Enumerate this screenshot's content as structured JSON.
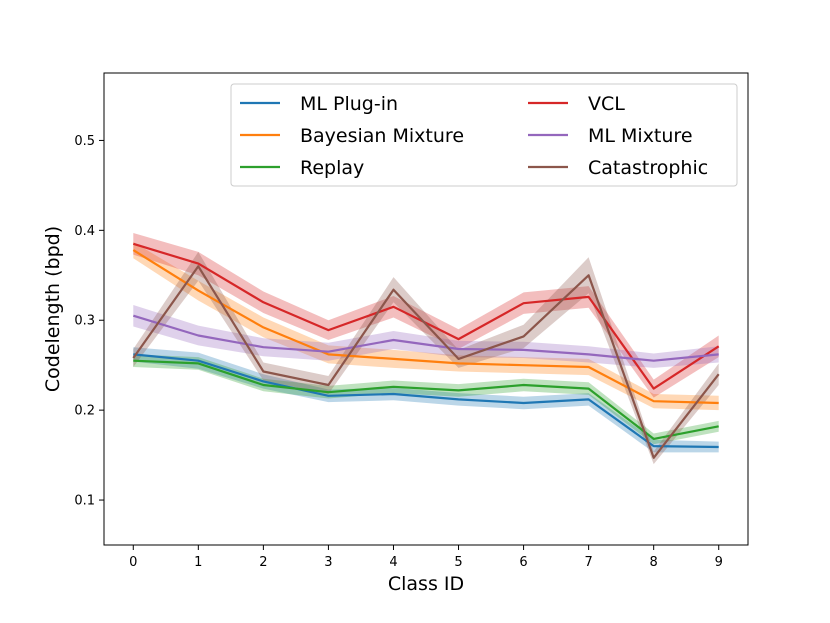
{
  "chart_data": {
    "type": "line",
    "title": "",
    "xlabel": "Class ID",
    "ylabel": "Codelength (bpd)",
    "xlim": [
      -0.45,
      9.45
    ],
    "ylim": [
      0.05,
      0.575
    ],
    "x_ticks": [
      "0",
      "1",
      "2",
      "3",
      "4",
      "5",
      "6",
      "7",
      "8",
      "9"
    ],
    "y_ticks": [
      "0.1",
      "0.2",
      "0.3",
      "0.4",
      "0.5"
    ],
    "legend_location": "top-right",
    "x": [
      0,
      1,
      2,
      3,
      4,
      5,
      6,
      7,
      8,
      9
    ],
    "series": [
      {
        "name": "ML Plug-in",
        "color": "#1f77b4",
        "values": [
          0.262,
          0.255,
          0.232,
          0.216,
          0.218,
          0.212,
          0.208,
          0.212,
          0.16,
          0.159
        ],
        "band": [
          0.008,
          0.009,
          0.008,
          0.007,
          0.007,
          0.007,
          0.007,
          0.007,
          0.007,
          0.006
        ]
      },
      {
        "name": "Bayesian Mixture",
        "color": "#ff7f0e",
        "values": [
          0.378,
          0.333,
          0.292,
          0.262,
          0.257,
          0.252,
          0.25,
          0.248,
          0.21,
          0.208
        ],
        "band": [
          0.009,
          0.011,
          0.011,
          0.01,
          0.01,
          0.009,
          0.009,
          0.009,
          0.008,
          0.008
        ]
      },
      {
        "name": "Replay",
        "color": "#2ca02c",
        "values": [
          0.255,
          0.252,
          0.228,
          0.22,
          0.226,
          0.222,
          0.228,
          0.224,
          0.168,
          0.182
        ],
        "band": [
          0.007,
          0.007,
          0.007,
          0.007,
          0.007,
          0.007,
          0.007,
          0.007,
          0.006,
          0.006
        ]
      },
      {
        "name": "VCL",
        "color": "#d62728",
        "values": [
          0.385,
          0.363,
          0.32,
          0.289,
          0.315,
          0.279,
          0.319,
          0.326,
          0.224,
          0.271
        ],
        "band": [
          0.012,
          0.013,
          0.012,
          0.011,
          0.012,
          0.011,
          0.012,
          0.012,
          0.01,
          0.012
        ]
      },
      {
        "name": "ML Mixture",
        "color": "#9467bd",
        "values": [
          0.305,
          0.283,
          0.27,
          0.265,
          0.278,
          0.268,
          0.267,
          0.262,
          0.255,
          0.262
        ],
        "band": [
          0.012,
          0.011,
          0.01,
          0.01,
          0.01,
          0.009,
          0.009,
          0.009,
          0.008,
          0.009
        ]
      },
      {
        "name": "Catastrophic",
        "color": "#8c564b",
        "values": [
          0.258,
          0.36,
          0.243,
          0.228,
          0.334,
          0.257,
          0.282,
          0.35,
          0.147,
          0.24
        ],
        "band": [
          0.01,
          0.016,
          0.01,
          0.01,
          0.014,
          0.01,
          0.013,
          0.02,
          0.007,
          0.012
        ]
      }
    ]
  }
}
